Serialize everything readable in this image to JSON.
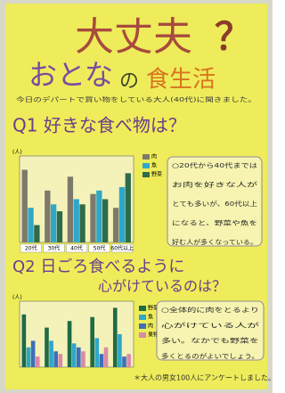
{
  "poster": {
    "title": "大丈夫",
    "title_mark": "？",
    "subtitle_a": "おとな",
    "subtitle_b": "の",
    "subtitle_c": "食生活",
    "intro": "今日のデパートで買い物をしている大人(40代)に聞きました。",
    "footer": "＊大人の男女100人にアンケートしました。"
  },
  "chart_data": [
    {
      "type": "bar",
      "title": "Q1 好きな食べ物は？",
      "y_label": "(人)",
      "categories": [
        "20代",
        "30代",
        "40代",
        "50代",
        "60代以上"
      ],
      "ylim": [
        0,
        50
      ],
      "series": [
        {
          "name": "肉",
          "color": "#7d7a6c",
          "values": [
            42,
            30,
            38,
            28,
            20
          ]
        },
        {
          "name": "魚",
          "color": "#2fa7c9",
          "values": [
            20,
            22,
            25,
            30,
            32
          ]
        },
        {
          "name": "野菜",
          "color": "#2e6b4a",
          "values": [
            10,
            18,
            22,
            25,
            40
          ]
        }
      ],
      "note": [
        "○20代から40代までは",
        "お肉を好きな人が",
        "とても多いが、60代以上",
        "になると、野菜や魚を",
        "好む人が多くなっている。"
      ]
    },
    {
      "type": "bar",
      "title": "Q2 日ごろ食べるように",
      "title_2": "心がけているのは？",
      "y_label": "(人)",
      "categories": [
        null,
        null,
        null,
        null,
        null
      ],
      "ylim": [
        0,
        50
      ],
      "series": [
        {
          "name": "野菜",
          "color": "#1f6b45",
          "values": [
            40,
            30,
            35,
            38,
            45
          ]
        },
        {
          "name": "魚",
          "color": "#2fa7c9",
          "values": [
            15,
            20,
            18,
            22,
            25
          ]
        },
        {
          "name": "肉",
          "color": "#3f6fb8",
          "values": [
            20,
            12,
            15,
            10,
            8
          ]
        },
        {
          "name": "果物",
          "color": "#d98aa6",
          "values": [
            8,
            10,
            12,
            15,
            10
          ]
        }
      ],
      "note": [
        "○全体的に肉をとるより",
        "心がけている人が",
        "多い。なかでも野菜を",
        "多くとるのがよいでしょう。"
      ]
    }
  ]
}
